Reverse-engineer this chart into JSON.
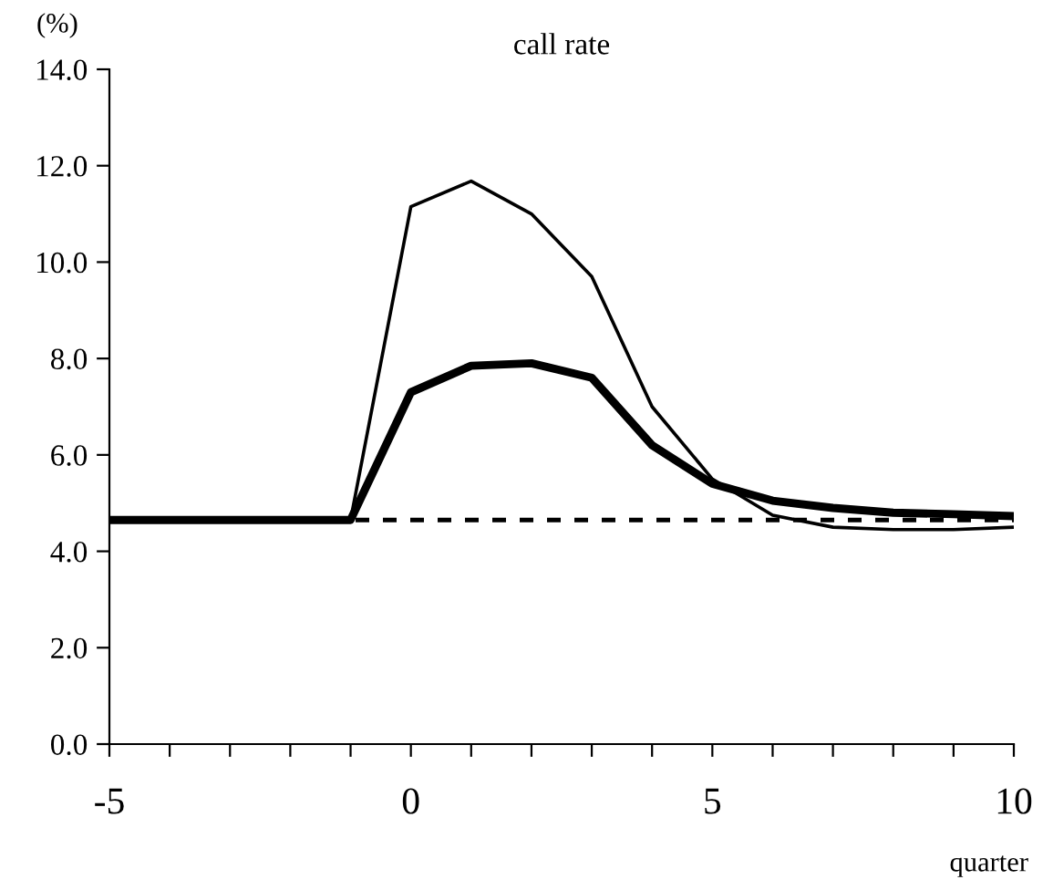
{
  "chart_data": {
    "type": "line",
    "title": "call rate",
    "ylabel": "(%)",
    "xlabel": "quarter",
    "x": [
      -5,
      -4,
      -3,
      -2,
      -1,
      0,
      1,
      2,
      3,
      4,
      5,
      6,
      7,
      8,
      9,
      10
    ],
    "series": [
      {
        "color": "#000000",
        "line_style": "solid",
        "values": [
          4.65,
          4.65,
          4.65,
          4.65,
          4.65,
          11.15,
          11.68,
          11.0,
          9.7,
          7.0,
          5.5,
          4.75,
          4.5,
          4.45,
          4.45,
          4.5
        ]
      },
      {
        "color": "#000000",
        "line_style": "solid",
        "values": [
          4.65,
          4.65,
          4.65,
          4.65,
          4.65,
          7.3,
          7.85,
          7.9,
          7.6,
          6.2,
          5.4,
          5.05,
          4.9,
          4.8,
          4.77,
          4.73
        ]
      },
      {
        "color": "#000000",
        "line_style": "dashed",
        "values": [
          4.65,
          4.65,
          4.65,
          4.65,
          4.65,
          4.65,
          4.65,
          4.65,
          4.65,
          4.65,
          4.65,
          4.65,
          4.65,
          4.65,
          4.65,
          4.65
        ]
      }
    ],
    "xlim": [
      -5,
      10
    ],
    "xticks": [
      -5,
      {
        "value": -4,
        "label": null
      },
      {
        "value": -3,
        "label": null
      },
      {
        "value": -2,
        "label": null
      },
      {
        "value": -1,
        "label": null
      },
      0,
      {
        "value": 1,
        "label": null
      },
      {
        "value": 2,
        "label": null
      },
      {
        "value": 3,
        "label": null
      },
      {
        "value": 4,
        "label": null
      },
      5,
      {
        "value": 6,
        "label": null
      },
      {
        "value": 7,
        "label": null
      },
      {
        "value": 8,
        "label": null
      },
      {
        "value": 9,
        "label": null
      },
      10
    ],
    "ylim": [
      0,
      14
    ],
    "yticks": [
      {
        "value": 0,
        "label": "0.0"
      },
      {
        "value": 2,
        "label": "2.0"
      },
      {
        "value": 4,
        "label": "4.0"
      },
      {
        "value": 6,
        "label": "6.0"
      },
      {
        "value": 8,
        "label": "8.0"
      },
      {
        "value": 10,
        "label": "10.0"
      },
      {
        "value": 12,
        "label": "12.0"
      },
      {
        "value": 14,
        "label": "14.0"
      }
    ],
    "grid": false,
    "legend": false,
    "marker": "none"
  }
}
